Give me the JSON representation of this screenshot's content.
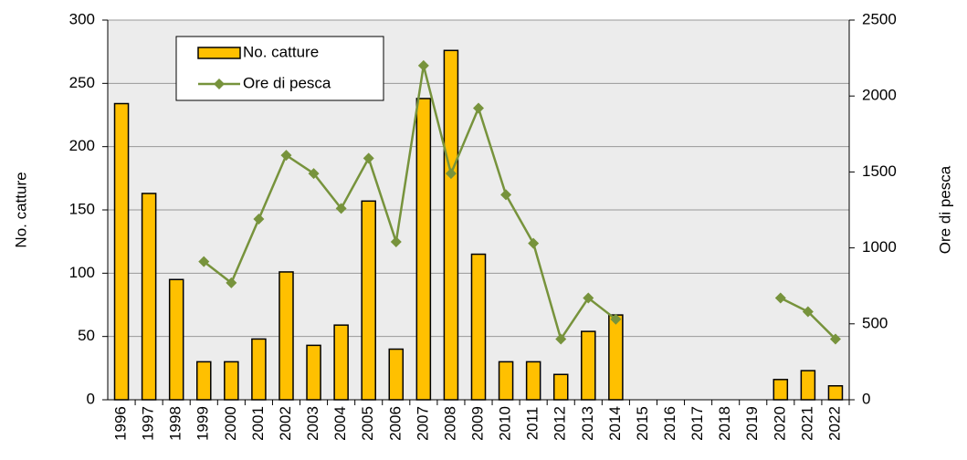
{
  "chart_data": {
    "type": "bar-line",
    "categories": [
      "1996",
      "1997",
      "1998",
      "1999",
      "2000",
      "2001",
      "2002",
      "2003",
      "2004",
      "2005",
      "2006",
      "2007",
      "2008",
      "2009",
      "2010",
      "2011",
      "2012",
      "2013",
      "2014",
      "2015",
      "2016",
      "2017",
      "2018",
      "2019",
      "2020",
      "2021",
      "2022"
    ],
    "series": [
      {
        "name": "No. catture",
        "type": "bar",
        "axis": "y",
        "color": "#ffc000",
        "values": [
          234,
          163,
          95,
          30,
          30,
          48,
          101,
          43,
          59,
          157,
          40,
          238,
          276,
          115,
          30,
          30,
          20,
          54,
          67,
          null,
          null,
          null,
          null,
          null,
          16,
          23,
          11
        ]
      },
      {
        "name": "Ore di pesca",
        "type": "line",
        "axis": "y2",
        "color": "#77933c",
        "values": [
          null,
          null,
          null,
          910,
          770,
          1190,
          1610,
          1490,
          1260,
          1590,
          1040,
          2200,
          1490,
          1920,
          1350,
          1030,
          400,
          670,
          530,
          null,
          null,
          null,
          null,
          null,
          670,
          580,
          400
        ]
      }
    ],
    "ylabel": "No. catture",
    "y2label": "Ore di pesca",
    "ylim": [
      0,
      300
    ],
    "yticks": [
      0,
      50,
      100,
      150,
      200,
      250,
      300
    ],
    "y2lim": [
      0,
      2500
    ],
    "y2ticks": [
      0,
      500,
      1000,
      1500,
      2000,
      2500
    ],
    "grid": true,
    "legend_position": "top-left"
  }
}
